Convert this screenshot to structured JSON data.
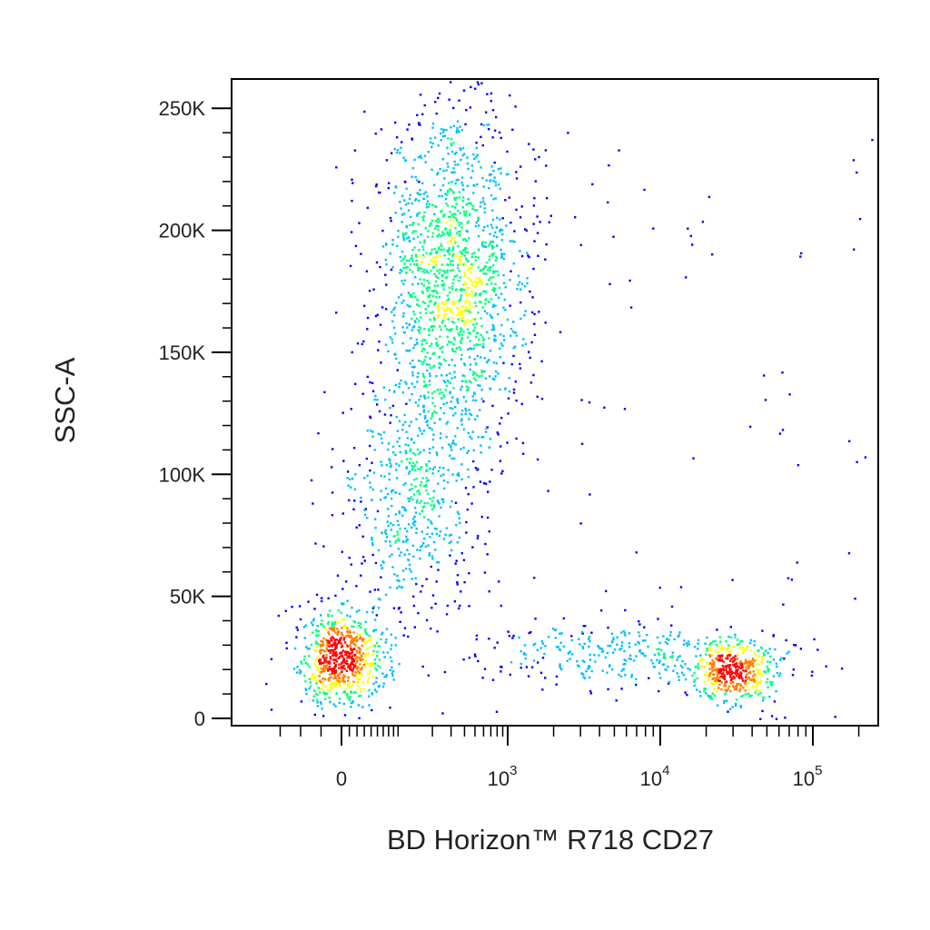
{
  "chart_data": {
    "type": "scatter",
    "subtype": "flow-cytometry-density-dot-plot",
    "xlabel": "BD Horizon™ R718 CD27",
    "ylabel": "SSC-A",
    "x_scale": "biexponential",
    "x_ticks": [
      {
        "value": 0,
        "base": "0",
        "exp": ""
      },
      {
        "value": 1000,
        "base": "10",
        "exp": "3"
      },
      {
        "value": 10000,
        "base": "10",
        "exp": "4"
      },
      {
        "value": 100000,
        "base": "10",
        "exp": "5"
      }
    ],
    "y_ticks": [
      {
        "value": 0,
        "label": "0"
      },
      {
        "value": 50000,
        "label": "50K"
      },
      {
        "value": 100000,
        "label": "100K"
      },
      {
        "value": 150000,
        "label": "150K"
      },
      {
        "value": 200000,
        "label": "200K"
      },
      {
        "value": 250000,
        "label": "250K"
      }
    ],
    "xlim": [
      -200,
      200000
    ],
    "ylim": [
      -3000,
      262000
    ],
    "grid": false,
    "legend": "none",
    "color_scale": [
      "#0000ff",
      "#00bfff",
      "#00ff80",
      "#ffff00",
      "#ff8000",
      "#ff0000"
    ],
    "populations": [
      {
        "x_median": 0,
        "y_median": 25000,
        "x_spread": "narrow",
        "y_spread": 10000,
        "events": 700,
        "peak_density": "high"
      },
      {
        "x_median": 300,
        "y_median": 180000,
        "x_spread": "moderate",
        "y_spread": 35000,
        "events": 1500,
        "peak_density": "high"
      },
      {
        "x_median": 120,
        "y_median": 90000,
        "x_spread": "moderate",
        "y_spread": 25000,
        "events": 500,
        "peak_density": "medium"
      },
      {
        "x_median": 30000,
        "y_median": 20000,
        "x_spread": "narrow",
        "y_spread": 6000,
        "events": 450,
        "peak_density": "very-high"
      },
      {
        "x_median": 6000,
        "y_median": 27000,
        "x_spread": "wide",
        "y_spread": 6000,
        "events": 300,
        "peak_density": "low"
      }
    ]
  }
}
